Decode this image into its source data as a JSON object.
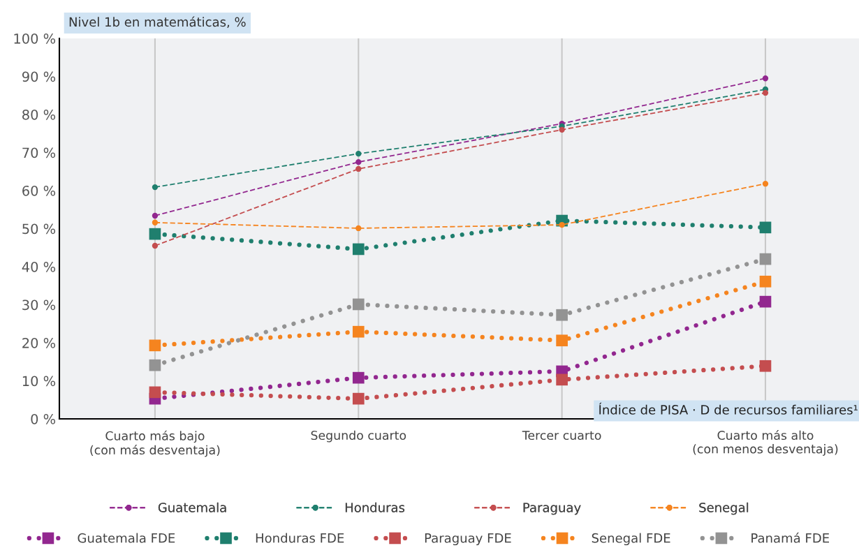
{
  "chart_data": {
    "type": "line",
    "title": "Nivel 1b en matemáticas, %",
    "xlabel": "Índice de PISA · D de recursos familiares¹",
    "categories": [
      "Cuarto más bajo\n(con más desventaja)",
      "Segundo cuarto",
      "Tercer cuarto",
      "Cuarto más alto\n(con menos desventaja)"
    ],
    "series": [
      {
        "name": "Guatemala",
        "color": "#92278f",
        "values": [
          53.4,
          67.5,
          77.6,
          89.5
        ],
        "line_style": "dashed",
        "marker": "circle"
      },
      {
        "name": "Honduras",
        "color": "#1f7f6e",
        "values": [
          60.9,
          69.7,
          76.9,
          86.6
        ],
        "line_style": "dashed",
        "marker": "circle"
      },
      {
        "name": "Paraguay",
        "color": "#c44d4f",
        "values": [
          45.5,
          65.7,
          76.0,
          85.7
        ],
        "line_style": "dashed",
        "marker": "circle"
      },
      {
        "name": "Senegal",
        "color": "#f5841f",
        "values": [
          51.6,
          50.1,
          51.0,
          61.8
        ],
        "line_style": "dashed",
        "marker": "circle"
      },
      {
        "name": "Guatemala FDE",
        "color": "#92278f",
        "values": [
          5.3,
          10.8,
          12.5,
          30.8
        ],
        "line_style": "dotted",
        "marker": "square"
      },
      {
        "name": "Honduras FDE",
        "color": "#1f7f6e",
        "values": [
          48.6,
          44.6,
          52.1,
          50.3
        ],
        "line_style": "dotted",
        "marker": "square"
      },
      {
        "name": "Paraguay FDE",
        "color": "#c44d4f",
        "values": [
          7.0,
          5.3,
          10.3,
          13.9
        ],
        "line_style": "dotted",
        "marker": "square"
      },
      {
        "name": "Senegal FDE",
        "color": "#f5841f",
        "values": [
          19.3,
          22.9,
          20.6,
          36.1
        ],
        "line_style": "dotted",
        "marker": "square"
      },
      {
        "name": "Panamá FDE",
        "color": "#939393",
        "values": [
          14.1,
          30.1,
          27.3,
          42.0
        ],
        "line_style": "dotted",
        "marker": "square"
      }
    ],
    "ylim": [
      0,
      100
    ],
    "yticks": [
      {
        "value": 0,
        "label": "0 %"
      },
      {
        "value": 10,
        "label": "10 %"
      },
      {
        "value": 20,
        "label": "20 %"
      },
      {
        "value": 30,
        "label": "30 %"
      },
      {
        "value": 40,
        "label": "40 %"
      },
      {
        "value": 50,
        "label": "50 %"
      },
      {
        "value": 60,
        "label": "60 %"
      },
      {
        "value": 70,
        "label": "70 %"
      },
      {
        "value": 80,
        "label": "80 %"
      },
      {
        "value": 90,
        "label": "90 %"
      },
      {
        "value": 100,
        "label": "100 %"
      }
    ],
    "grid": "x",
    "legend": "bottom"
  }
}
